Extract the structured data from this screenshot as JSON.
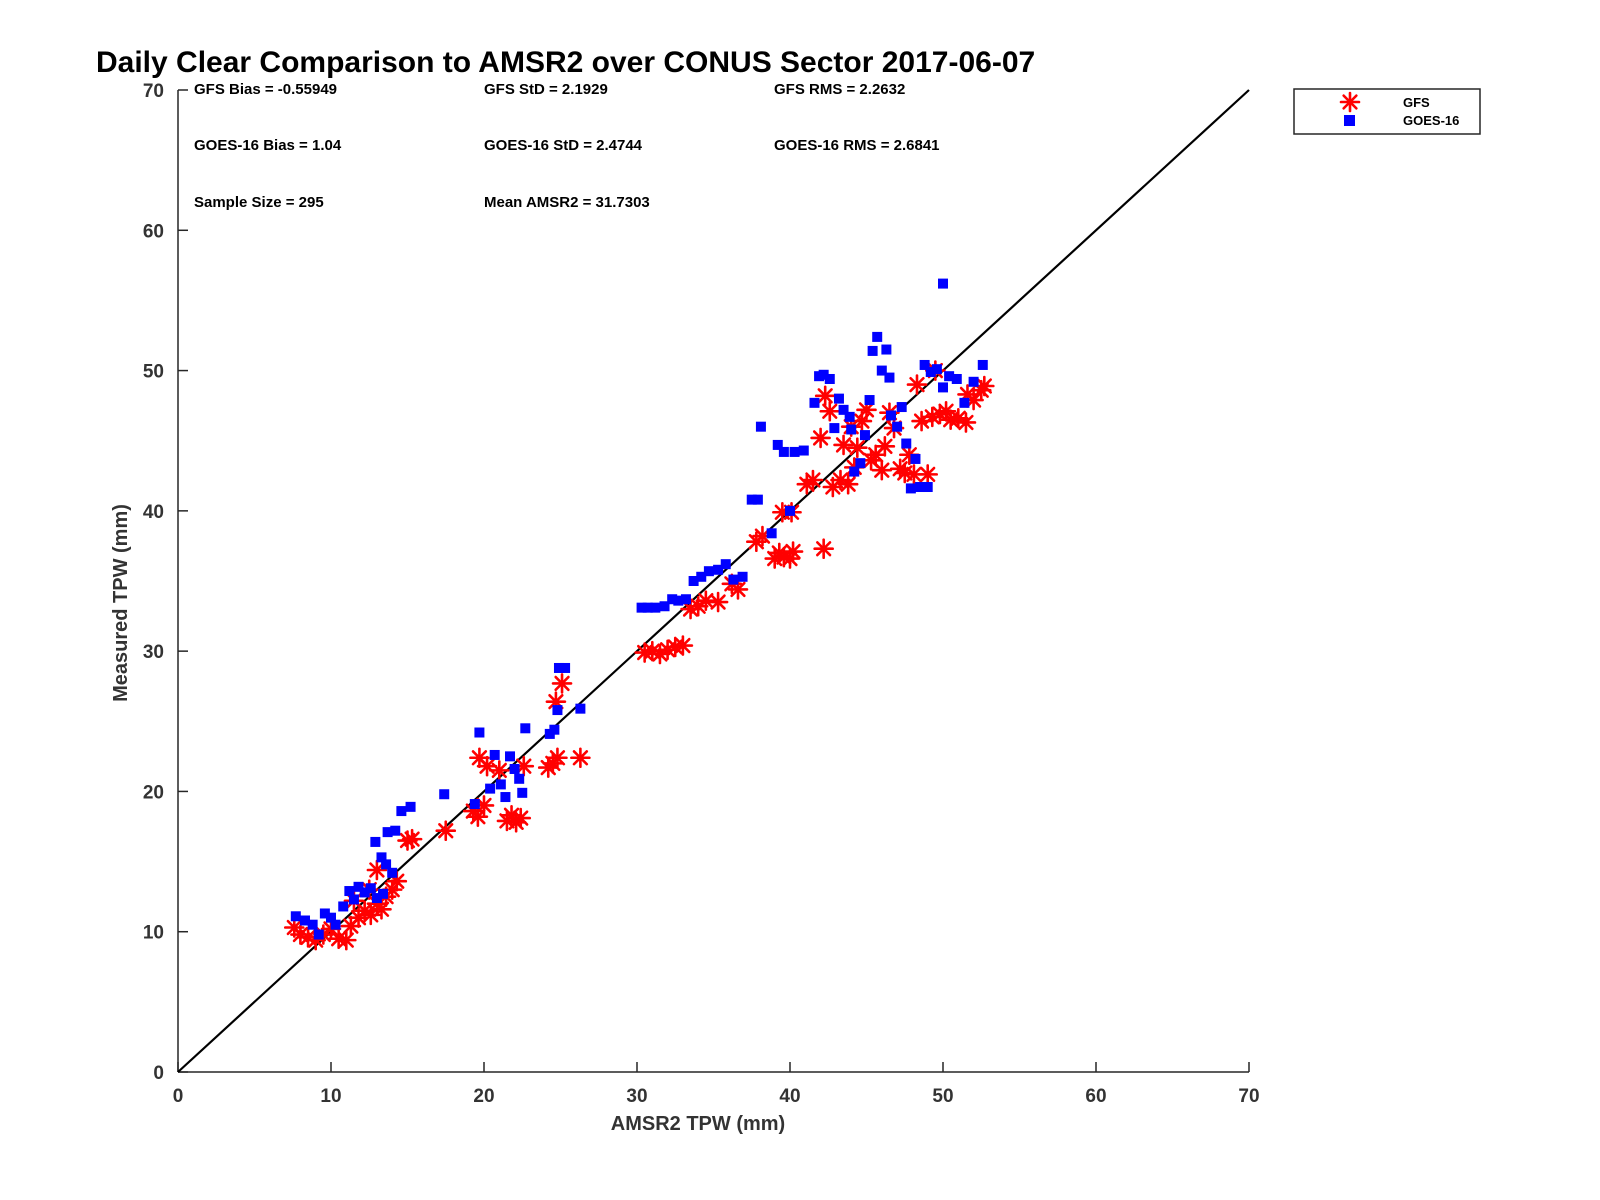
{
  "chart_data": {
    "type": "scatter",
    "title": "Daily Clear Comparison to AMSR2 over CONUS Sector 2017-06-07",
    "xlabel": "AMSR2 TPW (mm)",
    "ylabel": "Measured TPW (mm)",
    "xlim": [
      0,
      70
    ],
    "ylim": [
      0,
      70
    ],
    "xticks": [
      "0",
      "10",
      "20",
      "30",
      "40",
      "50",
      "60",
      "70"
    ],
    "yticks": [
      "0",
      "10",
      "20",
      "30",
      "40",
      "50",
      "60",
      "70"
    ],
    "grid": false,
    "legend_position": "top-right, outside axes",
    "reference_line": {
      "label": "1:1 line",
      "x": [
        0,
        70
      ],
      "y": [
        0,
        70
      ],
      "color": "#000000"
    },
    "stats": [
      "GFS Bias = -0.55949",
      "GFS StD = 2.1929",
      "GFS RMS = 2.2632",
      "GOES-16 Bias = 1.04",
      "GOES-16 StD = 2.4744",
      "GOES-16 RMS = 2.6841",
      "Sample Size = 295",
      "Mean AMSR2 = 31.7303"
    ],
    "series": [
      {
        "name": "GFS",
        "marker": "asterisk",
        "color": "#ff0000",
        "points": [
          [
            7.6,
            10.3
          ],
          [
            8.0,
            9.8
          ],
          [
            8.5,
            9.6
          ],
          [
            9.0,
            9.4
          ],
          [
            9.5,
            9.8
          ],
          [
            10.0,
            10.2
          ],
          [
            10.5,
            9.5
          ],
          [
            11.0,
            9.4
          ],
          [
            11.3,
            10.4
          ],
          [
            11.8,
            11.0
          ],
          [
            12.2,
            11.5
          ],
          [
            12.6,
            11.2
          ],
          [
            13.0,
            12.0
          ],
          [
            13.3,
            11.6
          ],
          [
            13.6,
            12.5
          ],
          [
            14.0,
            13.0
          ],
          [
            14.3,
            13.6
          ],
          [
            13.0,
            14.4
          ],
          [
            12.5,
            13.0
          ],
          [
            11.5,
            12.2
          ],
          [
            15.0,
            16.5
          ],
          [
            15.3,
            16.6
          ],
          [
            17.5,
            17.2
          ],
          [
            19.3,
            18.6
          ],
          [
            19.6,
            18.2
          ],
          [
            20.0,
            19.0
          ],
          [
            19.7,
            22.4
          ],
          [
            20.2,
            21.8
          ],
          [
            21.0,
            21.5
          ],
          [
            21.5,
            17.9
          ],
          [
            21.8,
            18.3
          ],
          [
            22.1,
            17.8
          ],
          [
            22.4,
            18.1
          ],
          [
            22.6,
            21.8
          ],
          [
            24.2,
            21.7
          ],
          [
            24.5,
            22.0
          ],
          [
            24.8,
            22.4
          ],
          [
            26.3,
            22.4
          ],
          [
            24.7,
            26.4
          ],
          [
            25.1,
            27.7
          ],
          [
            30.5,
            29.9
          ],
          [
            31.0,
            30.0
          ],
          [
            31.5,
            29.8
          ],
          [
            32.0,
            30.1
          ],
          [
            32.5,
            30.3
          ],
          [
            33.0,
            30.4
          ],
          [
            33.5,
            33.0
          ],
          [
            34.0,
            33.2
          ],
          [
            34.5,
            33.6
          ],
          [
            35.3,
            33.5
          ],
          [
            36.2,
            34.8
          ],
          [
            36.6,
            34.4
          ],
          [
            37.8,
            37.8
          ],
          [
            38.2,
            38.2
          ],
          [
            39.0,
            36.6
          ],
          [
            39.3,
            37.0
          ],
          [
            39.6,
            36.7
          ],
          [
            40.0,
            36.6
          ],
          [
            40.2,
            37.1
          ],
          [
            39.5,
            39.9
          ],
          [
            40.1,
            39.9
          ],
          [
            41.1,
            41.9
          ],
          [
            41.5,
            42.2
          ],
          [
            42.2,
            37.3
          ],
          [
            42.0,
            45.2
          ],
          [
            42.3,
            48.2
          ],
          [
            42.6,
            47.1
          ],
          [
            42.8,
            41.7
          ],
          [
            43.3,
            42.2
          ],
          [
            43.8,
            41.9
          ],
          [
            44.2,
            43.1
          ],
          [
            44.4,
            44.5
          ],
          [
            44.7,
            46.4
          ],
          [
            45.0,
            47.2
          ],
          [
            45.3,
            43.6
          ],
          [
            45.6,
            44.0
          ],
          [
            46.0,
            42.9
          ],
          [
            46.2,
            44.6
          ],
          [
            46.5,
            47.0
          ],
          [
            46.8,
            45.9
          ],
          [
            47.2,
            43.0
          ],
          [
            47.5,
            42.7
          ],
          [
            47.8,
            44.0
          ],
          [
            48.1,
            42.6
          ],
          [
            48.3,
            49.0
          ],
          [
            48.6,
            46.4
          ],
          [
            49.0,
            42.6
          ],
          [
            49.3,
            46.7
          ],
          [
            49.8,
            46.9
          ],
          [
            50.2,
            47.1
          ],
          [
            50.5,
            46.5
          ],
          [
            51.0,
            46.6
          ],
          [
            51.5,
            46.3
          ],
          [
            51.6,
            48.3
          ],
          [
            52.0,
            47.9
          ],
          [
            52.5,
            48.6
          ],
          [
            52.7,
            48.9
          ],
          [
            49.5,
            50.0
          ],
          [
            44.0,
            46.0
          ],
          [
            43.5,
            44.7
          ]
        ]
      },
      {
        "name": "GOES-16",
        "marker": "square",
        "color": "#0000ff",
        "points": [
          [
            7.7,
            11.1
          ],
          [
            8.3,
            10.8
          ],
          [
            8.8,
            10.5
          ],
          [
            9.2,
            9.8
          ],
          [
            9.6,
            11.3
          ],
          [
            10.0,
            11.0
          ],
          [
            10.3,
            10.5
          ],
          [
            10.8,
            11.8
          ],
          [
            11.2,
            12.9
          ],
          [
            11.5,
            12.3
          ],
          [
            11.8,
            13.2
          ],
          [
            12.2,
            12.8
          ],
          [
            12.6,
            13.1
          ],
          [
            13.0,
            12.4
          ],
          [
            13.4,
            12.7
          ],
          [
            12.9,
            16.4
          ],
          [
            13.3,
            15.3
          ],
          [
            13.7,
            17.1
          ],
          [
            14.2,
            17.2
          ],
          [
            14.6,
            18.6
          ],
          [
            15.2,
            18.9
          ],
          [
            13.6,
            14.8
          ],
          [
            14.0,
            14.2
          ],
          [
            17.4,
            19.8
          ],
          [
            19.4,
            19.1
          ],
          [
            19.7,
            24.2
          ],
          [
            20.4,
            20.2
          ],
          [
            20.7,
            22.6
          ],
          [
            21.1,
            20.5
          ],
          [
            21.4,
            19.6
          ],
          [
            21.7,
            22.5
          ],
          [
            22.0,
            21.6
          ],
          [
            22.3,
            20.9
          ],
          [
            22.5,
            19.9
          ],
          [
            22.7,
            24.5
          ],
          [
            24.3,
            24.1
          ],
          [
            24.6,
            24.4
          ],
          [
            24.9,
            28.8
          ],
          [
            25.3,
            28.8
          ],
          [
            24.8,
            25.8
          ],
          [
            26.3,
            25.9
          ],
          [
            30.3,
            33.1
          ],
          [
            30.7,
            33.1
          ],
          [
            31.2,
            33.1
          ],
          [
            31.8,
            33.2
          ],
          [
            32.3,
            33.7
          ],
          [
            32.7,
            33.6
          ],
          [
            33.2,
            33.7
          ],
          [
            33.7,
            35.0
          ],
          [
            34.2,
            35.3
          ],
          [
            34.7,
            35.7
          ],
          [
            35.3,
            35.8
          ],
          [
            35.8,
            36.2
          ],
          [
            36.3,
            35.1
          ],
          [
            36.9,
            35.3
          ],
          [
            37.5,
            40.8
          ],
          [
            37.9,
            40.8
          ],
          [
            38.1,
            46.0
          ],
          [
            38.8,
            38.4
          ],
          [
            39.2,
            44.7
          ],
          [
            39.6,
            44.2
          ],
          [
            40.0,
            40.0
          ],
          [
            40.3,
            44.2
          ],
          [
            40.9,
            44.3
          ],
          [
            41.6,
            47.7
          ],
          [
            41.9,
            49.6
          ],
          [
            42.2,
            49.7
          ],
          [
            42.6,
            49.4
          ],
          [
            42.9,
            45.9
          ],
          [
            43.2,
            48.0
          ],
          [
            43.5,
            47.2
          ],
          [
            43.9,
            46.7
          ],
          [
            44.2,
            42.8
          ],
          [
            44.6,
            43.4
          ],
          [
            44.9,
            45.4
          ],
          [
            45.2,
            47.9
          ],
          [
            45.4,
            51.4
          ],
          [
            45.7,
            52.4
          ],
          [
            46.0,
            50.0
          ],
          [
            46.3,
            51.5
          ],
          [
            46.6,
            46.8
          ],
          [
            47.0,
            46.0
          ],
          [
            47.3,
            47.4
          ],
          [
            47.6,
            44.8
          ],
          [
            47.9,
            41.6
          ],
          [
            48.2,
            43.7
          ],
          [
            48.5,
            41.7
          ],
          [
            48.8,
            50.4
          ],
          [
            49.2,
            49.9
          ],
          [
            49.6,
            50.1
          ],
          [
            50.0,
            48.8
          ],
          [
            50.4,
            49.6
          ],
          [
            50.9,
            49.4
          ],
          [
            51.4,
            47.7
          ],
          [
            52.0,
            49.2
          ],
          [
            52.6,
            50.4
          ],
          [
            50.0,
            56.2
          ],
          [
            49.0,
            41.7
          ],
          [
            46.5,
            49.5
          ],
          [
            44.0,
            45.8
          ]
        ]
      }
    ]
  }
}
